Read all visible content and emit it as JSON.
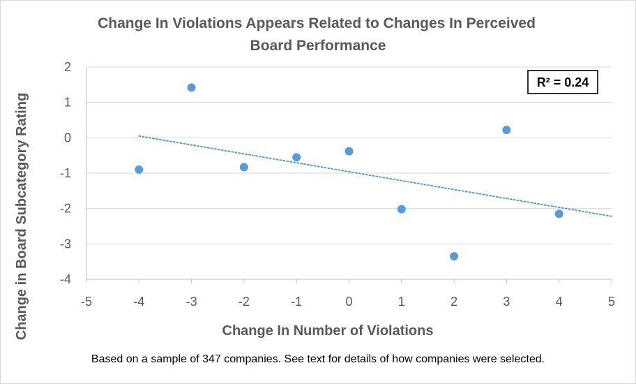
{
  "chart_data": {
    "type": "scatter",
    "title": "Change In Violations  Appears Related to Changes In Perceived Board Performance",
    "title_lines": [
      "Change In Violations  Appears Related to Changes In Perceived",
      "Board Performance"
    ],
    "xlabel": "Change In Number of Violations",
    "ylabel": "Change in Board Subcategory Rating",
    "xlim": [
      -5,
      5
    ],
    "ylim": [
      -4,
      2
    ],
    "x_ticks": [
      -5,
      -4,
      -3,
      -2,
      -1,
      0,
      1,
      2,
      3,
      4,
      5
    ],
    "y_ticks": [
      2,
      1,
      0,
      -1,
      -2,
      -3,
      -4
    ],
    "grid": "horizontal",
    "points": [
      {
        "x": -4,
        "y": -0.9
      },
      {
        "x": -3,
        "y": 1.42
      },
      {
        "x": -2,
        "y": -0.83
      },
      {
        "x": -1,
        "y": -0.55
      },
      {
        "x": 0,
        "y": -0.38
      },
      {
        "x": 1,
        "y": -2.02
      },
      {
        "x": 2,
        "y": -3.35
      },
      {
        "x": 3,
        "y": 0.22
      },
      {
        "x": 4,
        "y": -2.15
      }
    ],
    "trendline": {
      "type": "linear",
      "style": "dotted",
      "from": {
        "x": -4,
        "y": 0.05
      },
      "to": {
        "x": 5,
        "y": -2.22
      }
    },
    "annotation": "R² = 0.24",
    "point_color": "#5b9bd5",
    "trendline_color": "#5b9bd5"
  },
  "footnote": "Based on a sample of 347 companies. See text for details of how companies were selected."
}
